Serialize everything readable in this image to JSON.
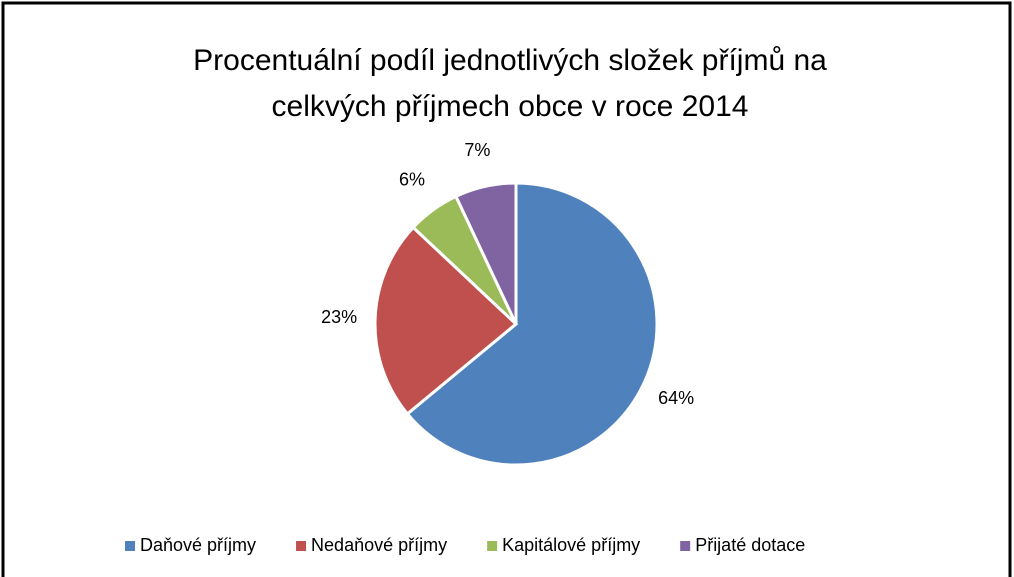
{
  "chart_data": {
    "type": "pie",
    "title": [
      "Procentuální podíl jednotlivých složek příjmů na",
      "celkvých příjmech obce v roce 2014"
    ],
    "categories": [
      "Daňové příjmy",
      "Nedaňové příjmy",
      "Kapitálové příjmy",
      "Přijaté dotace"
    ],
    "values": [
      64,
      23,
      6,
      7
    ],
    "value_labels": [
      "64%",
      "23%",
      "6%",
      "7%"
    ],
    "colors": [
      "#4f81bd",
      "#c0504d",
      "#9bbb59",
      "#8064a2"
    ],
    "legend": "bottom"
  }
}
